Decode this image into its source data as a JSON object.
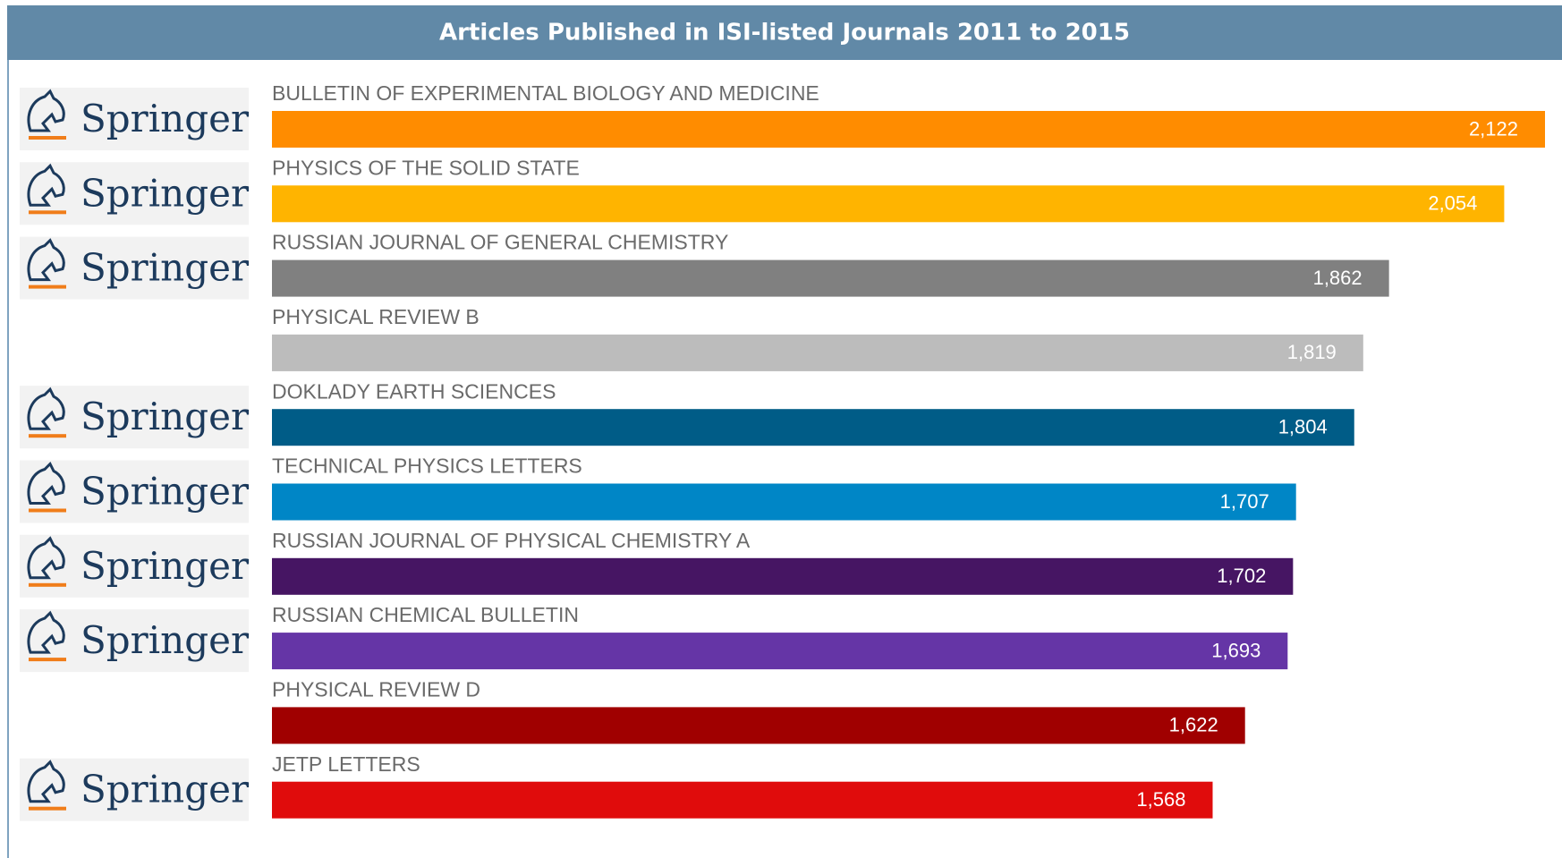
{
  "chart_data": {
    "type": "hbar",
    "title": "Articles Published in ISI-listed Journals 2011 to 2015",
    "categories": [
      "BULLETIN OF EXPERIMENTAL BIOLOGY AND MEDICINE",
      "PHYSICS OF THE SOLID STATE",
      "RUSSIAN JOURNAL OF GENERAL CHEMISTRY",
      "PHYSICAL REVIEW B",
      "DOKLADY EARTH SCIENCES",
      "TECHNICAL PHYSICS LETTERS",
      "RUSSIAN JOURNAL OF PHYSICAL CHEMISTRY A",
      "RUSSIAN CHEMICAL BULLETIN",
      "PHYSICAL REVIEW D",
      "JETP LETTERS"
    ],
    "values": [
      2122,
      2054,
      1862,
      1819,
      1804,
      1707,
      1702,
      1693,
      1622,
      1568
    ],
    "value_labels": [
      "2,122",
      "2,054",
      "1,862",
      "1,819",
      "1,804",
      "1,707",
      "1,702",
      "1,693",
      "1,622",
      "1,568"
    ],
    "colors": [
      "#ff8c00",
      "#ffb400",
      "#808080",
      "#bcbcbc",
      "#005c87",
      "#0086c6",
      "#461563",
      "#6535a6",
      "#a00000",
      "#e00c0c"
    ],
    "logos": [
      "Springer",
      "Springer",
      "Springer",
      null,
      "Springer",
      "Springer",
      "Springer",
      "Springer",
      null,
      "Springer"
    ]
  }
}
